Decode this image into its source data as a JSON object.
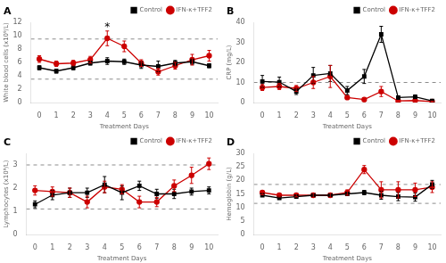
{
  "chart_data": [
    {
      "type": "line",
      "title": "A",
      "xlabel": "Treatment Days",
      "ylabel": "White blood cells (x10⁹/L)",
      "x": [
        0,
        1,
        2,
        3,
        4,
        5,
        6,
        7,
        8,
        9,
        10
      ],
      "xlim": [
        -0.5,
        10.5
      ],
      "xticks": [
        0,
        1,
        2,
        3,
        4,
        5,
        6,
        7,
        8,
        9,
        10
      ],
      "ylim": [
        0,
        12
      ],
      "yticks": [
        0,
        2,
        4,
        6,
        8,
        10,
        12
      ],
      "grid": false,
      "legend": "upper right",
      "hlines": [
        3.5,
        9.5
      ],
      "annotations": [
        {
          "text": "*",
          "x": 4,
          "y": 10.9
        }
      ],
      "series": [
        {
          "name": "Control",
          "color": "#000000",
          "marker": "square",
          "values": [
            5.2,
            4.7,
            5.2,
            5.9,
            6.2,
            6.1,
            5.6,
            5.4,
            5.9,
            6.1,
            5.5
          ],
          "errors": [
            0.3,
            0.3,
            0.3,
            0.3,
            0.5,
            0.4,
            0.5,
            0.8,
            0.4,
            0.4,
            0.3
          ]
        },
        {
          "name": "IFN-κ+TFF2",
          "color": "#cc0000",
          "marker": "circle",
          "values": [
            6.5,
            5.8,
            5.9,
            6.4,
            9.6,
            8.4,
            5.9,
            4.6,
            5.5,
            6.4,
            7.0
          ],
          "errors": [
            0.5,
            0.4,
            0.4,
            0.5,
            1.1,
            0.8,
            0.5,
            0.5,
            0.5,
            0.8,
            0.8
          ]
        }
      ]
    },
    {
      "type": "line",
      "title": "B",
      "xlabel": "Treatment Days",
      "ylabel": "CRP (mg/L)",
      "x": [
        0,
        1,
        2,
        3,
        4,
        5,
        6,
        7,
        8,
        9,
        10
      ],
      "xlim": [
        -0.5,
        10.5
      ],
      "xticks": [
        0,
        1,
        2,
        3,
        4,
        5,
        6,
        7,
        8,
        9,
        10
      ],
      "ylim": [
        0,
        40
      ],
      "yticks": [
        0,
        10,
        20,
        30,
        40
      ],
      "grid": false,
      "legend": "upper right",
      "hlines": [
        10
      ],
      "series": [
        {
          "name": "Control",
          "color": "#000000",
          "marker": "square",
          "values": [
            10.5,
            10.2,
            5.5,
            13.5,
            14.5,
            6.0,
            13.0,
            34.0,
            2.5,
            2.8,
            0.8
          ],
          "errors": [
            3.0,
            2.5,
            1.5,
            4.0,
            4.0,
            2.0,
            3.5,
            4.0,
            0.8,
            1.0,
            0.3
          ]
        },
        {
          "name": "IFN-κ+TFF2",
          "color": "#cc0000",
          "marker": "circle",
          "values": [
            7.5,
            8.0,
            7.0,
            10.0,
            13.0,
            2.5,
            1.5,
            5.5,
            0.8,
            1.0,
            0.5
          ],
          "errors": [
            1.5,
            1.5,
            1.5,
            3.0,
            5.5,
            0.8,
            0.5,
            2.5,
            0.3,
            0.5,
            0.2
          ]
        }
      ]
    },
    {
      "type": "line",
      "title": "C",
      "xlabel": "Treatment Days",
      "ylabel": "Lymphocytes (x10⁹/L)",
      "x": [
        0,
        1,
        2,
        3,
        4,
        5,
        6,
        7,
        8,
        9,
        10
      ],
      "xlim": [
        -0.5,
        10.5
      ],
      "xticks": [
        0,
        1,
        2,
        3,
        4,
        5,
        6,
        7,
        8,
        9,
        10
      ],
      "ylim": [
        0,
        3.5
      ],
      "yticks": [
        0,
        1,
        2,
        3
      ],
      "grid": false,
      "legend": "upper right",
      "hlines": [
        1.1,
        3.0
      ],
      "series": [
        {
          "name": "Control",
          "color": "#000000",
          "marker": "square",
          "values": [
            1.3,
            1.7,
            1.8,
            1.8,
            2.15,
            1.8,
            2.1,
            1.75,
            1.75,
            1.85,
            1.9
          ],
          "errors": [
            0.15,
            0.2,
            0.2,
            0.2,
            0.35,
            0.3,
            0.2,
            0.2,
            0.2,
            0.15,
            0.15
          ]
        },
        {
          "name": "IFN-κ+TFF2",
          "color": "#cc0000",
          "marker": "circle",
          "values": [
            1.9,
            1.85,
            1.8,
            1.4,
            2.05,
            1.95,
            1.4,
            1.4,
            2.1,
            2.55,
            3.05
          ],
          "errors": [
            0.2,
            0.2,
            0.2,
            0.25,
            0.25,
            0.2,
            0.25,
            0.2,
            0.25,
            0.35,
            0.25
          ]
        }
      ]
    },
    {
      "type": "line",
      "title": "D",
      "xlabel": "Treatment Days",
      "ylabel": "Hemoglobin (g/L)",
      "x": [
        0,
        1,
        2,
        3,
        4,
        5,
        6,
        7,
        8,
        9,
        10
      ],
      "xlim": [
        -0.5,
        10.5
      ],
      "xticks": [
        0,
        1,
        2,
        3,
        4,
        5,
        6,
        7,
        8,
        9,
        10
      ],
      "ylim": [
        0,
        30
      ],
      "yticks": [
        0,
        5,
        10,
        15,
        20,
        25,
        30
      ],
      "grid": false,
      "legend": "upper right",
      "hlines": [
        11.5,
        18.5
      ],
      "series": [
        {
          "name": "Control",
          "color": "#000000",
          "marker": "square",
          "values": [
            14.5,
            13.5,
            14.0,
            14.5,
            14.5,
            15.0,
            15.5,
            14.5,
            14.0,
            13.8,
            18.5
          ],
          "errors": [
            0.5,
            0.5,
            0.5,
            0.5,
            0.5,
            0.5,
            0.8,
            1.5,
            1.5,
            1.5,
            1.5
          ]
        },
        {
          "name": "IFN-κ+TFF2",
          "color": "#cc0000",
          "marker": "circle",
          "values": [
            15.5,
            14.5,
            14.5,
            14.5,
            14.5,
            15.5,
            24.0,
            16.5,
            16.5,
            16.5,
            17.5
          ],
          "errors": [
            0.8,
            0.6,
            0.6,
            0.8,
            0.8,
            1.0,
            1.5,
            3.0,
            3.0,
            2.5,
            2.0
          ]
        }
      ]
    }
  ]
}
